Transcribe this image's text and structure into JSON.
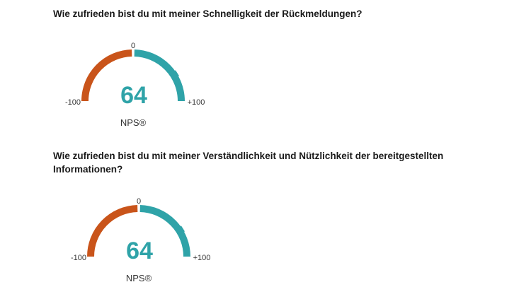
{
  "questions": [
    {
      "text": "Wie zufrieden bist du mit meiner Schnelligkeit der Rückmeldungen?"
    },
    {
      "text": "Wie zufrieden bist du mit meiner Verständlichkeit und Nützlichkeit der bereitgestellten Informationen?"
    }
  ],
  "colors": {
    "negative": "#c9541a",
    "positive": "#2fa3a8",
    "score": "#2fa3a8"
  },
  "chart_data": [
    {
      "type": "gauge",
      "title": "Wie zufrieden bist du mit meiner Schnelligkeit der Rückmeldungen?",
      "value": 64,
      "range": [
        -100,
        100
      ],
      "tick_labels": {
        "min": "-100",
        "mid": "0",
        "max": "+100"
      },
      "value_label": "64",
      "unit_label": "NPS®"
    },
    {
      "type": "gauge",
      "title": "Wie zufrieden bist du mit meiner Verständlichkeit und Nützlichkeit der bereitgestellten Informationen?",
      "value": 64,
      "range": [
        -100,
        100
      ],
      "tick_labels": {
        "min": "-100",
        "mid": "0",
        "max": "+100"
      },
      "value_label": "64",
      "unit_label": "NPS®"
    }
  ]
}
